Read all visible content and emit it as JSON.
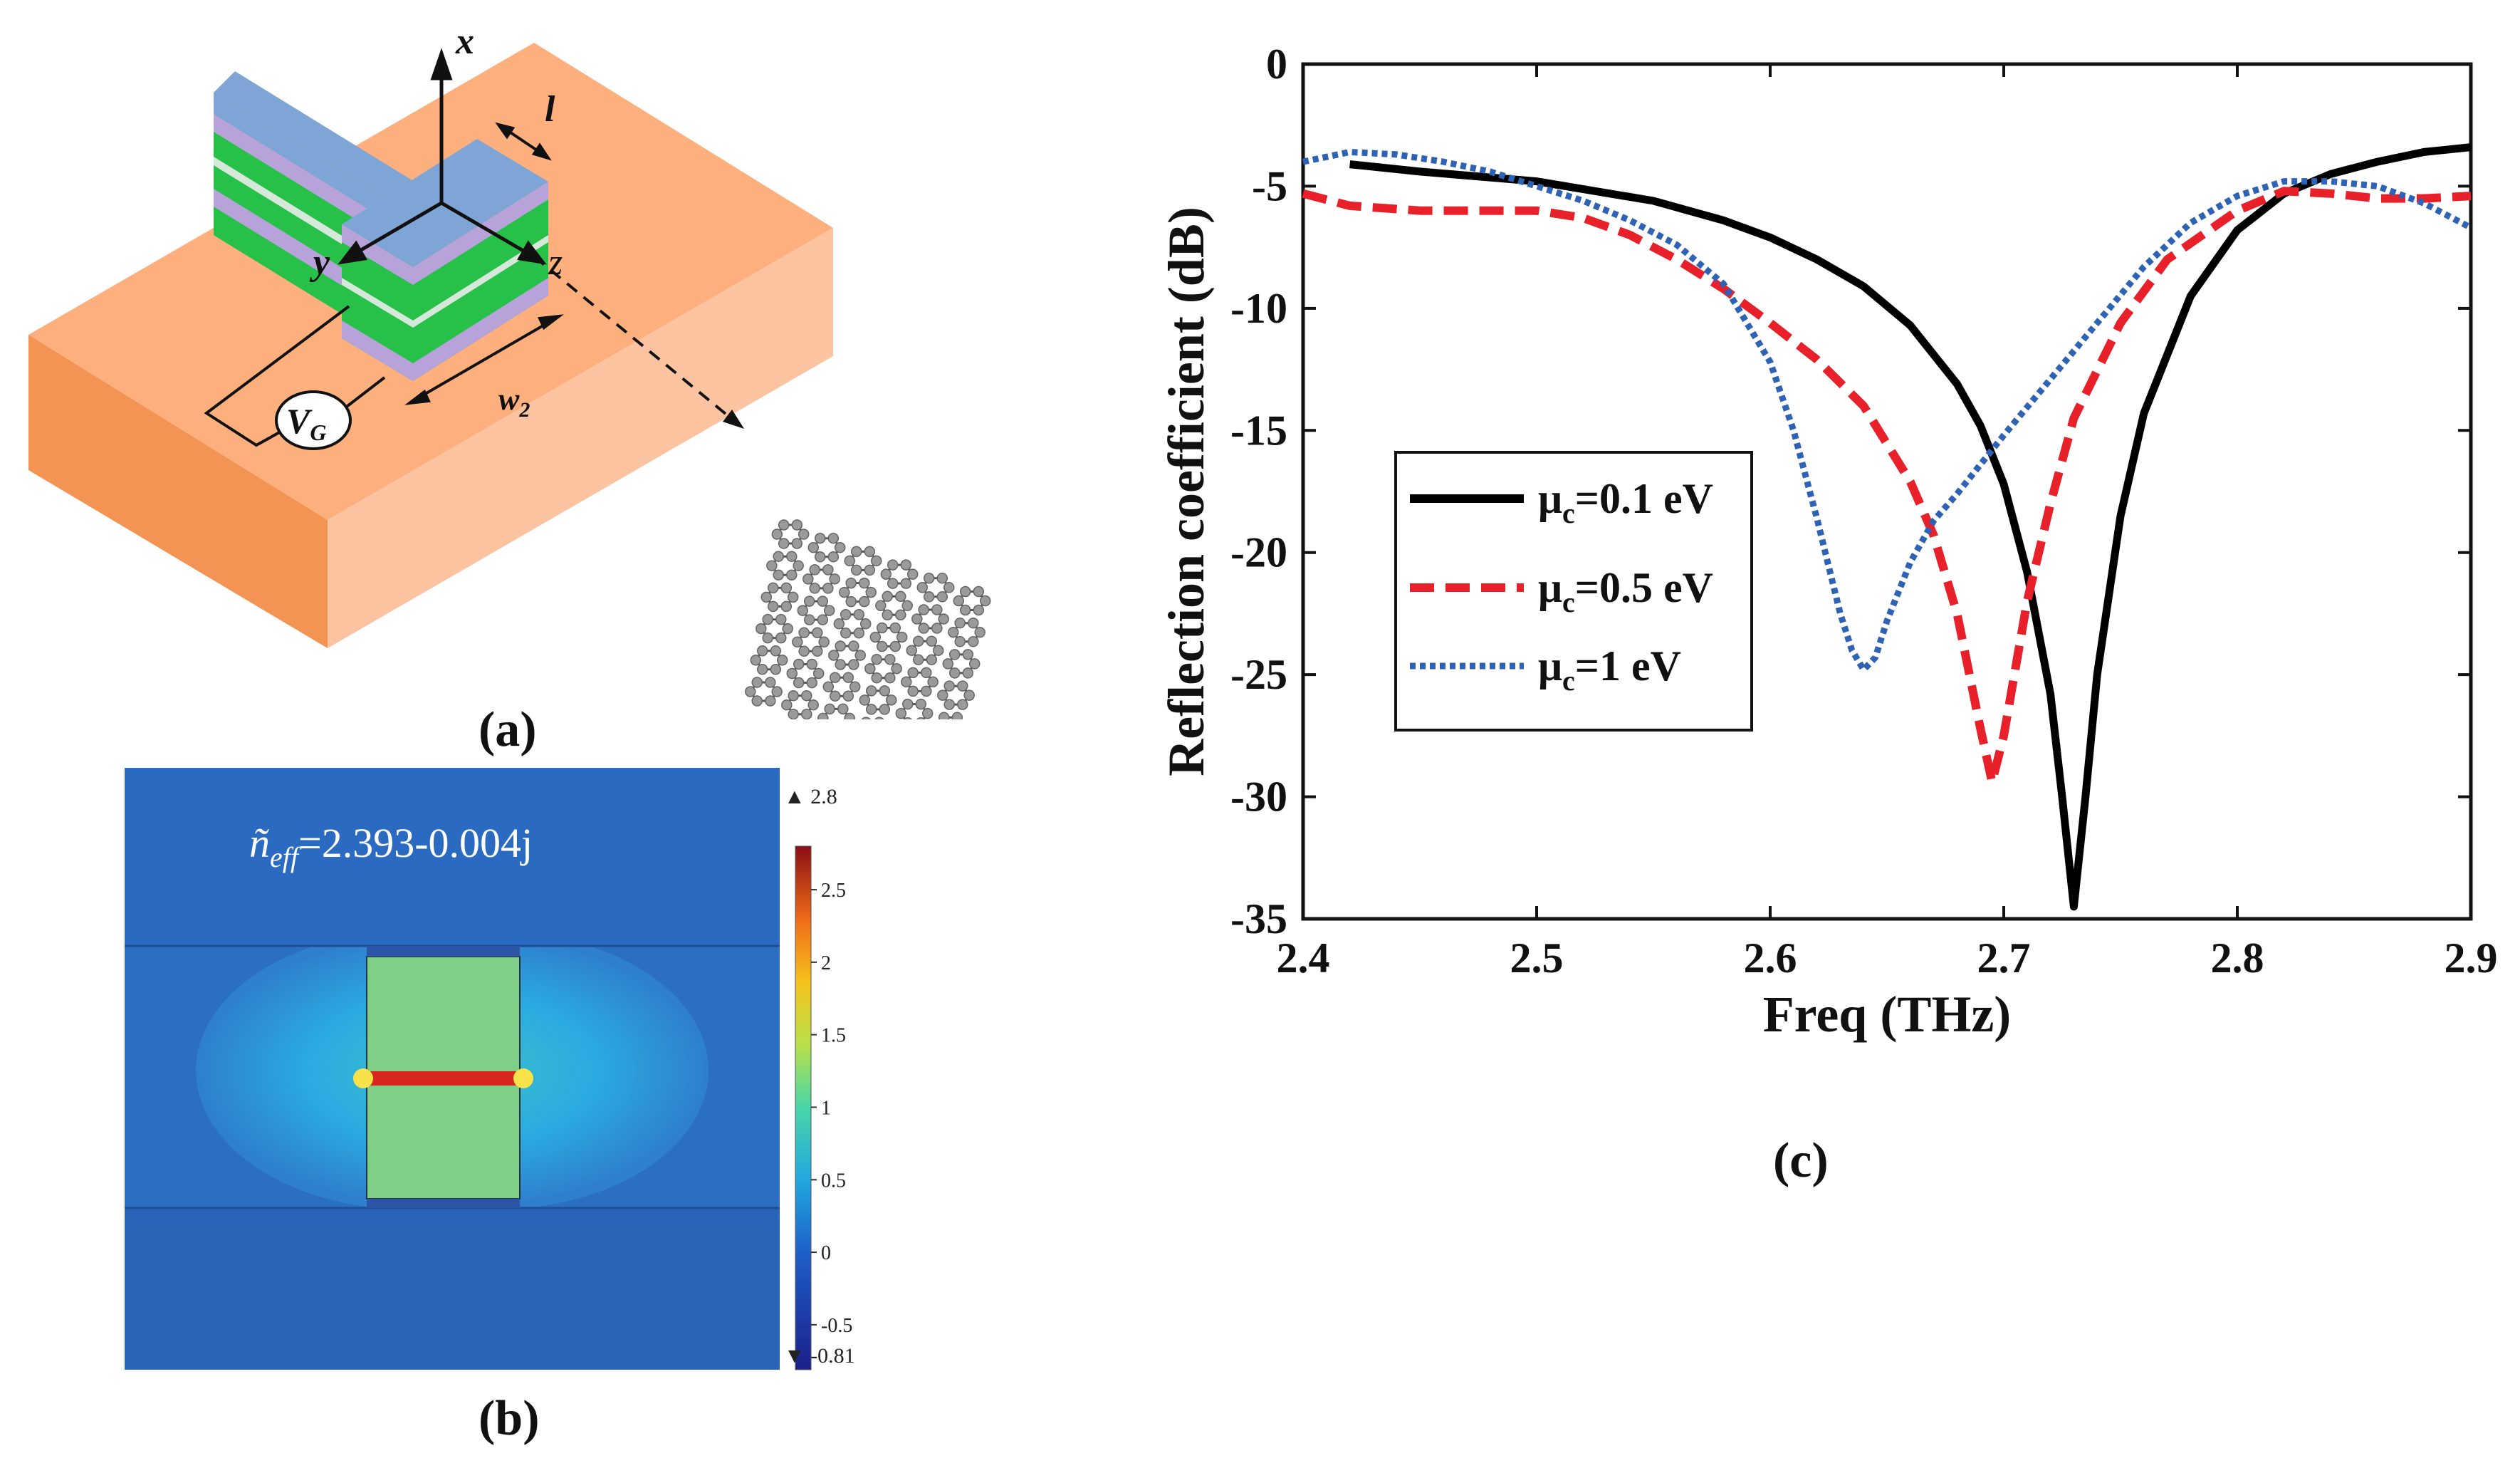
{
  "captions": {
    "a": "(a)",
    "b": "(b)",
    "c": "(c)"
  },
  "panel_a": {
    "axis_x": "x",
    "axis_y": "y",
    "axis_z": "z",
    "dim_l": "l",
    "dim_w": "w",
    "dim_w_sub": "2",
    "source_v": "V",
    "source_v_sub": "G",
    "colors": {
      "substrate_top": "#FDB07E",
      "substrate_left": "#F39455",
      "substrate_right": "#FCC3A0",
      "layer_blue": "#7FA5D6",
      "layer_purple": "#B7A3DA",
      "layer_green": "#27C14A",
      "layer_light": "#D6E8D9"
    }
  },
  "panel_b": {
    "neff_label": "ñeff=2.393-0.004j",
    "neff_base": "ñ",
    "neff_sub": "eff",
    "neff_value": "=2.393-0.004j",
    "colorbar_max": "▲ 2.8",
    "colorbar_min": "▼ -0.81",
    "colorbar_ticks": [
      "2.5",
      "2",
      "1.5",
      "1",
      "0.5",
      "0",
      "-0.5"
    ],
    "colorbar_tick_values": [
      2.5,
      2,
      1.5,
      1,
      0.5,
      0,
      -0.5
    ],
    "colorbar_range": [
      -0.81,
      2.8
    ]
  },
  "chart_data": {
    "type": "line",
    "title": "",
    "xlabel": "Freq (THz)",
    "ylabel": "Reflection coefficient (dB)",
    "xlim": [
      2.4,
      2.9
    ],
    "ylim": [
      -35,
      0
    ],
    "xticks": [
      2.4,
      2.5,
      2.6,
      2.7,
      2.8,
      2.9
    ],
    "xtick_labels": [
      "2.4",
      "2.5",
      "2.6",
      "2.7",
      "2.8",
      "2.9"
    ],
    "yticks": [
      0,
      -5,
      -10,
      -15,
      -20,
      -25,
      -30,
      -35
    ],
    "ytick_labels": [
      "0",
      "-5",
      "-10",
      "-15",
      "-20",
      "-25",
      "-30",
      "-35"
    ],
    "legend_position": "middle-left",
    "series": [
      {
        "name": "μc=0.1 eV",
        "label_mu": "μ",
        "label_sub": "c",
        "label_rest": "=0.1 eV",
        "color": "#000000",
        "style": "solid",
        "x": [
          2.42,
          2.45,
          2.5,
          2.55,
          2.58,
          2.6,
          2.62,
          2.64,
          2.66,
          2.68,
          2.69,
          2.7,
          2.71,
          2.72,
          2.725,
          2.73,
          2.735,
          2.74,
          2.75,
          2.76,
          2.78,
          2.8,
          2.82,
          2.84,
          2.86,
          2.88,
          2.9
        ],
        "y": [
          -4.1,
          -4.4,
          -4.8,
          -5.6,
          -6.4,
          -7.1,
          -8.0,
          -9.1,
          -10.7,
          -13.1,
          -14.8,
          -17.2,
          -20.8,
          -25.8,
          -30.0,
          -34.5,
          -30.0,
          -25.0,
          -18.5,
          -14.3,
          -9.5,
          -6.8,
          -5.3,
          -4.5,
          -4.0,
          -3.6,
          -3.4
        ]
      },
      {
        "name": "μc=0.5 eV",
        "label_mu": "μ",
        "label_sub": "c",
        "label_rest": "=0.5 eV",
        "color": "#E8202A",
        "style": "dashed",
        "x": [
          2.4,
          2.42,
          2.45,
          2.5,
          2.52,
          2.54,
          2.56,
          2.58,
          2.6,
          2.62,
          2.64,
          2.66,
          2.67,
          2.68,
          2.69,
          2.695,
          2.7,
          2.71,
          2.72,
          2.73,
          2.75,
          2.77,
          2.8,
          2.82,
          2.84,
          2.86,
          2.88,
          2.9
        ],
        "y": [
          -5.3,
          -5.8,
          -6.0,
          -6.0,
          -6.3,
          -7.0,
          -8.0,
          -9.2,
          -10.6,
          -12.1,
          -14.0,
          -17.1,
          -19.3,
          -22.5,
          -27.2,
          -29.4,
          -27.5,
          -22.0,
          -18.0,
          -14.5,
          -10.6,
          -8.0,
          -6.0,
          -5.2,
          -5.3,
          -5.5,
          -5.5,
          -5.4
        ]
      },
      {
        "name": "μc=1 eV",
        "label_mu": "μ",
        "label_sub": "c",
        "label_rest": "=1 eV",
        "color": "#2D62B5",
        "style": "dotted",
        "x": [
          2.4,
          2.41,
          2.42,
          2.44,
          2.46,
          2.48,
          2.5,
          2.52,
          2.54,
          2.56,
          2.58,
          2.6,
          2.61,
          2.62,
          2.63,
          2.635,
          2.64,
          2.645,
          2.65,
          2.66,
          2.67,
          2.68,
          2.7,
          2.72,
          2.74,
          2.76,
          2.78,
          2.8,
          2.82,
          2.84,
          2.86,
          2.88,
          2.9
        ],
        "y": [
          -4.0,
          -3.8,
          -3.6,
          -3.7,
          -4.0,
          -4.4,
          -5.0,
          -5.6,
          -6.4,
          -7.4,
          -9.0,
          -12.2,
          -15.0,
          -18.6,
          -22.5,
          -24.0,
          -24.8,
          -24.3,
          -22.8,
          -20.4,
          -18.7,
          -17.6,
          -15.2,
          -12.9,
          -10.6,
          -8.3,
          -6.5,
          -5.4,
          -4.8,
          -4.8,
          -5.0,
          -5.7,
          -6.7
        ]
      }
    ]
  }
}
